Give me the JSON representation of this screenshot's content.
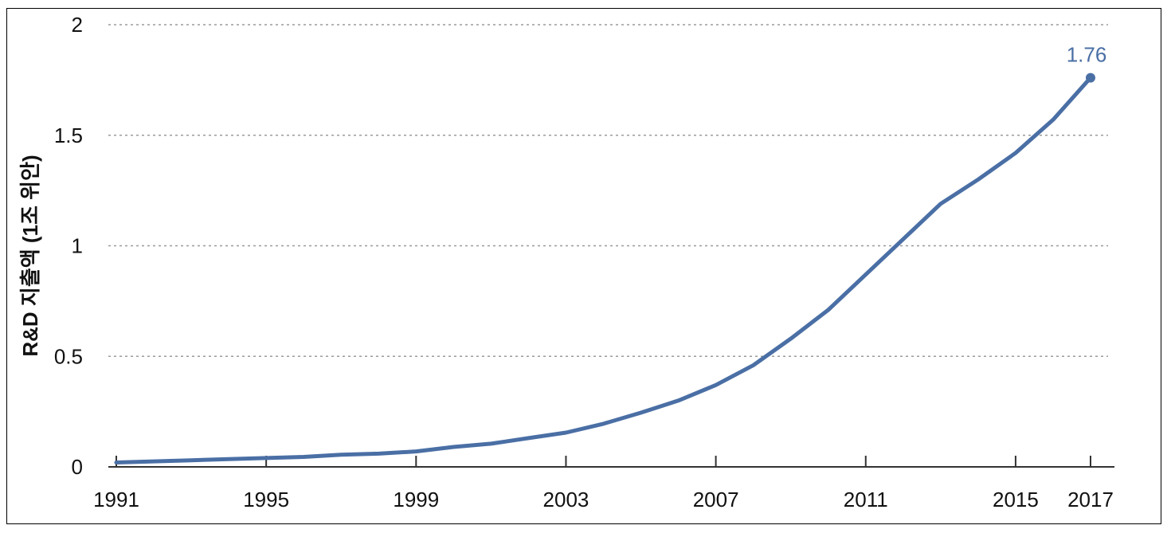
{
  "chart_data": {
    "type": "line",
    "title": "",
    "xlabel": "",
    "ylabel": "R&D 지출액 (1조 위안)",
    "x_ticks": [
      "1991",
      "1995",
      "1999",
      "2003",
      "2007",
      "2011",
      "2015",
      "2017"
    ],
    "x_tick_values": [
      1991,
      1995,
      1999,
      2003,
      2007,
      2011,
      2015,
      2017
    ],
    "y_ticks": [
      "0",
      "0.5",
      "1",
      "1.5",
      "2"
    ],
    "y_tick_values": [
      0,
      0.5,
      1,
      1.5,
      2
    ],
    "xlim": [
      1991,
      2017
    ],
    "ylim": [
      0,
      2
    ],
    "grid": "horizontal dotted",
    "series": [
      {
        "color": "#4a6fa5",
        "x": [
          1991,
          1992,
          1993,
          1994,
          1995,
          1996,
          1997,
          1998,
          1999,
          2000,
          2001,
          2002,
          2003,
          2004,
          2005,
          2006,
          2007,
          2008,
          2009,
          2010,
          2011,
          2012,
          2013,
          2014,
          2015,
          2016,
          2017
        ],
        "values": [
          0.02,
          0.025,
          0.03,
          0.035,
          0.04,
          0.045,
          0.055,
          0.06,
          0.07,
          0.09,
          0.105,
          0.13,
          0.155,
          0.195,
          0.245,
          0.3,
          0.37,
          0.46,
          0.58,
          0.71,
          0.87,
          1.03,
          1.19,
          1.3,
          1.42,
          1.57,
          1.76
        ]
      }
    ],
    "annotations": [
      {
        "text": "1.76",
        "x": 2017,
        "y": 1.76,
        "color": "#4a6fa5"
      }
    ]
  }
}
